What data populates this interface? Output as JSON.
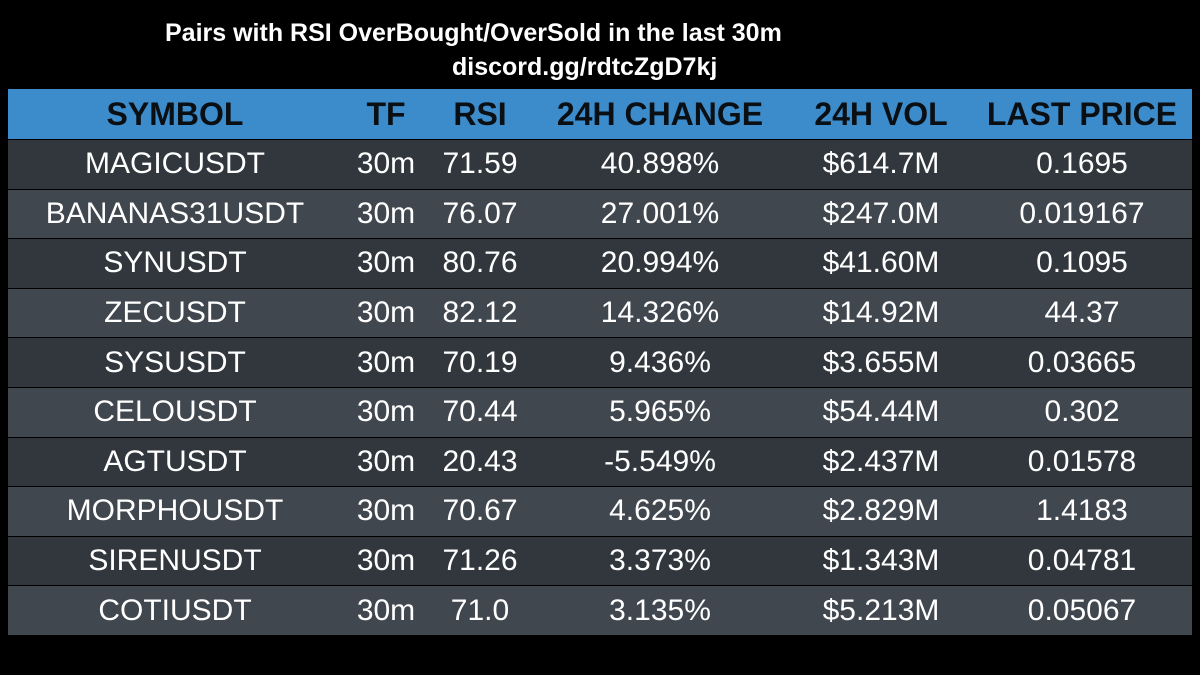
{
  "title": "Pairs with RSI OverBought/OverSold in the last 30m",
  "subtitle": "discord.gg/rdtcZgD7kj",
  "columns": [
    "SYMBOL",
    "TF",
    "RSI",
    "24H CHANGE",
    "24H VOL",
    "LAST PRICE"
  ],
  "rows": [
    [
      "MAGICUSDT",
      "30m",
      "71.59",
      "40.898%",
      "$614.7M",
      "0.1695"
    ],
    [
      "BANANAS31USDT",
      "30m",
      "76.07",
      "27.001%",
      "$247.0M",
      "0.019167"
    ],
    [
      "SYNUSDT",
      "30m",
      "80.76",
      "20.994%",
      "$41.60M",
      "0.1095"
    ],
    [
      "ZECUSDT",
      "30m",
      "82.12",
      "14.326%",
      "$14.92M",
      "44.37"
    ],
    [
      "SYSUSDT",
      "30m",
      "70.19",
      "9.436%",
      "$3.655M",
      "0.03665"
    ],
    [
      "CELOUSDT",
      "30m",
      "70.44",
      "5.965%",
      "$54.44M",
      "0.302"
    ],
    [
      "AGTUSDT",
      "30m",
      "20.43",
      "-5.549%",
      "$2.437M",
      "0.01578"
    ],
    [
      "MORPHOUSDT",
      "30m",
      "70.67",
      "4.625%",
      "$2.829M",
      "1.4183"
    ],
    [
      "SIRENUSDT",
      "30m",
      "71.26",
      "3.373%",
      "$1.343M",
      "0.04781"
    ],
    [
      "COTIUSDT",
      "30m",
      "71.0",
      "3.135%",
      "$5.213M",
      "0.05067"
    ]
  ],
  "colors": {
    "background": "#000000",
    "header_bg": "#3c8ccc",
    "row_odd_bg": "#31373d",
    "row_even_bg": "#41474f",
    "text": "#ffffff",
    "header_text": "#0a0f14"
  }
}
